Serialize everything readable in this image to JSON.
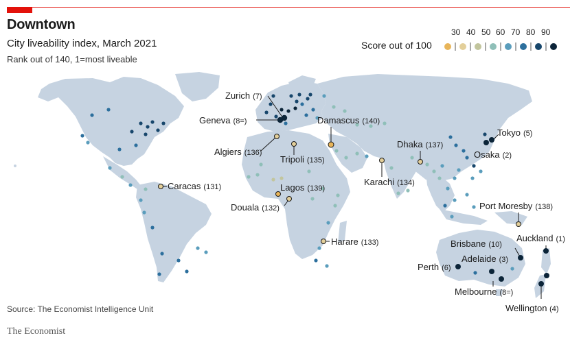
{
  "header": {
    "title": "Downtown",
    "subtitle": "City liveability index, March 2021",
    "subtitle2": "Rank out of 140, 1=most liveable"
  },
  "legend": {
    "title": "Score out of 100",
    "ticks": [
      "30",
      "40",
      "50",
      "60",
      "70",
      "80",
      "90"
    ],
    "colors": [
      "#e8b55a",
      "#e3cf9a",
      "#c2c59d",
      "#8fbfb8",
      "#5a9dbc",
      "#2c6f9d",
      "#17466b",
      "#0b2438"
    ]
  },
  "colors": {
    "accent": "#e3120b",
    "land": "#c6d3e1",
    "highlight_ring": "#1a1a1a"
  },
  "cities": [
    {
      "name": "Zurich",
      "rank": "(7)",
      "score": 93
    },
    {
      "name": "Geneva",
      "rank": "(8=)",
      "score": 93
    },
    {
      "name": "Damascus",
      "rank": "(140)",
      "score": 30
    },
    {
      "name": "Algiers",
      "rank": "(136)",
      "score": 38
    },
    {
      "name": "Tripoli",
      "rank": "(135)",
      "score": 38
    },
    {
      "name": "Dhaka",
      "rank": "(137)",
      "score": 37
    },
    {
      "name": "Tokyo",
      "rank": "(5)",
      "score": 94
    },
    {
      "name": "Osaka",
      "rank": "(2)",
      "score": 95
    },
    {
      "name": "Karachi",
      "rank": "(134)",
      "score": 39
    },
    {
      "name": "Caracas",
      "rank": "(131)",
      "score": 40
    },
    {
      "name": "Lagos",
      "rank": "(139)",
      "score": 35
    },
    {
      "name": "Douala",
      "rank": "(132)",
      "score": 40
    },
    {
      "name": "Port Moresby",
      "rank": "(138)",
      "score": 36
    },
    {
      "name": "Harare",
      "rank": "(133)",
      "score": 40
    },
    {
      "name": "Brisbane",
      "rank": "(10)",
      "score": 92
    },
    {
      "name": "Auckland",
      "rank": "(1)",
      "score": 96
    },
    {
      "name": "Adelaide",
      "rank": "(3)",
      "score": 94
    },
    {
      "name": "Perth",
      "rank": "(6)",
      "score": 94
    },
    {
      "name": "Melbourne",
      "rank": "(8=)",
      "score": 93
    },
    {
      "name": "Wellington",
      "rank": "(4)",
      "score": 94
    }
  ],
  "footer": {
    "source": "Source: The Economist Intelligence Unit",
    "brand": "The Economist"
  }
}
